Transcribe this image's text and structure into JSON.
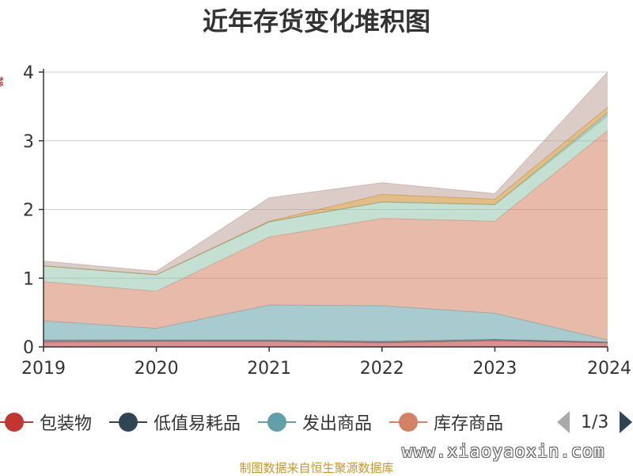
{
  "title": "近年存货变化堆积图",
  "source": "制图数据来自恒生聚源数据库",
  "watermark": "www.xiaoyaoxin.com",
  "pager": {
    "text": "1/3"
  },
  "chart_data": {
    "type": "area",
    "stacked": true,
    "title": "近年存货变化堆积图",
    "x": [
      "2019",
      "2020",
      "2021",
      "2022",
      "2023",
      "2024"
    ],
    "ylim": [
      0,
      4
    ],
    "yticks": [
      "0",
      "1",
      "2",
      "3",
      "4"
    ],
    "grid": true,
    "legend_position": "bottom",
    "series": [
      {
        "name": "包装物",
        "color": "#c23531",
        "values": [
          0.07,
          0.08,
          0.08,
          0.06,
          0.09,
          0.06
        ]
      },
      {
        "name": "低值易耗品",
        "color": "#2f4554",
        "values": [
          0.03,
          0.02,
          0.02,
          0.02,
          0.02,
          0.01
        ]
      },
      {
        "name": "发出商品",
        "color": "#61a0a8",
        "values": [
          0.28,
          0.17,
          0.51,
          0.52,
          0.38,
          0.03
        ]
      },
      {
        "name": "库存商品",
        "color": "#d48265",
        "values": [
          0.57,
          0.54,
          0.99,
          1.27,
          1.34,
          3.05
        ]
      },
      {
        "name": "",
        "color": "#91c7ae",
        "values": [
          0.23,
          0.24,
          0.22,
          0.24,
          0.24,
          0.21
        ]
      },
      {
        "name": "",
        "color": "#749f83",
        "values": [
          0.0,
          0.0,
          0.0,
          0.0,
          0.0,
          0.05
        ]
      },
      {
        "name": "",
        "color": "#ca8622",
        "values": [
          0.0,
          0.0,
          0.01,
          0.11,
          0.08,
          0.08
        ]
      },
      {
        "name": "",
        "color": "#bda29a",
        "values": [
          0.07,
          0.05,
          0.34,
          0.17,
          0.08,
          0.51
        ]
      }
    ]
  }
}
